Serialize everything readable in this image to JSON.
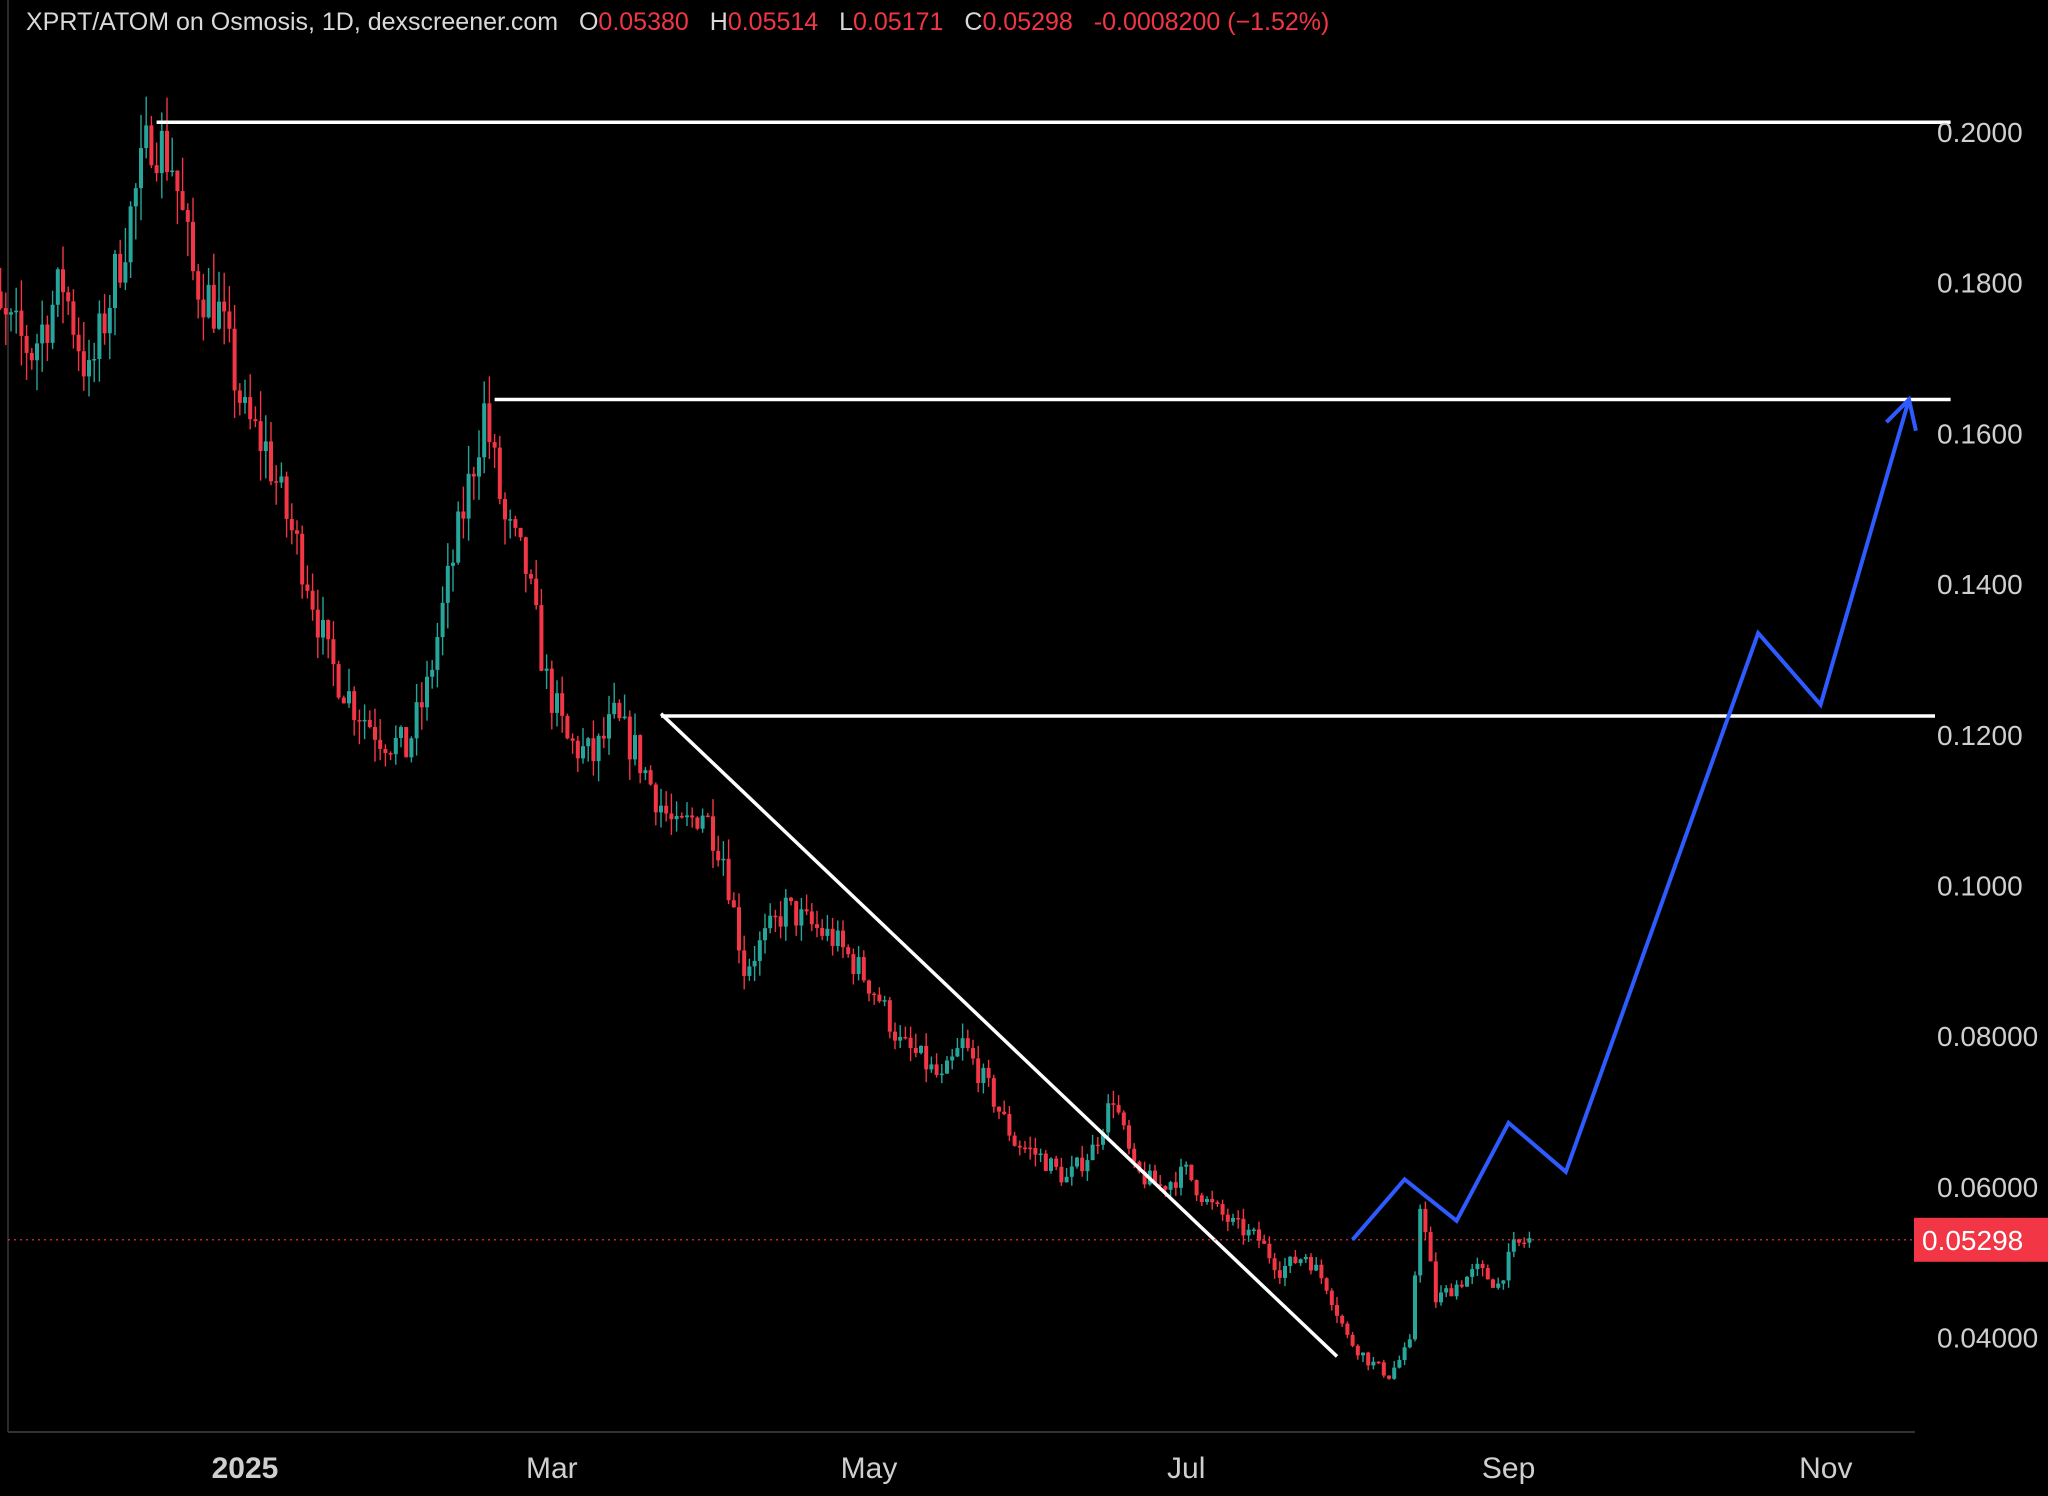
{
  "header": {
    "symbol": "XPRT/ATOM on Osmosis, 1D, dexscreener.com",
    "o_label": "O",
    "o_value": "0.05380",
    "h_label": "H",
    "h_value": "0.05514",
    "l_label": "L",
    "l_value": "0.05171",
    "c_label": "C",
    "c_value": "0.05298",
    "change": "-0.0008200 (−1.52%)"
  },
  "colors": {
    "background": "#000000",
    "up": "#26a69a",
    "down": "#f23645",
    "drawing": "#ffffff",
    "projection": "#2e5bff",
    "price_tag": "#f23645"
  },
  "chart_data": {
    "type": "candlestick",
    "title": "",
    "xlabel": "",
    "ylabel": "",
    "y_ticks": [
      "0.2000",
      "0.1800",
      "0.1600",
      "0.1400",
      "0.1200",
      "0.1000",
      "0.08000",
      "0.06000",
      "0.04000"
    ],
    "y_tick_values": [
      0.2,
      0.18,
      0.16,
      0.14,
      0.12,
      0.1,
      0.08,
      0.06,
      0.04
    ],
    "ylim": [
      0.03,
      0.21
    ],
    "x_ticks": [
      "2025",
      "Mar",
      "May",
      "Jul",
      "Sep",
      "Nov"
    ],
    "x_tick_dates": [
      "2025-01-01",
      "2025-03-01",
      "2025-05-01",
      "2025-07-01",
      "2025-09-01",
      "2025-11-01"
    ],
    "x_bold_ticks": [
      "2025"
    ],
    "xlim": [
      "2024-11-09",
      "2025-11-15"
    ],
    "current_price": "0.05298",
    "price_path": [
      [
        "2024-11-10",
        0.183
      ],
      [
        "2024-11-16",
        0.175
      ],
      [
        "2024-11-22",
        0.171
      ],
      [
        "2024-11-28",
        0.18
      ],
      [
        "2024-12-03",
        0.167
      ],
      [
        "2024-12-07",
        0.178
      ],
      [
        "2024-12-11",
        0.189
      ],
      [
        "2024-12-15",
        0.2
      ],
      [
        "2024-12-19",
        0.196
      ],
      [
        "2024-12-23",
        0.181
      ],
      [
        "2024-12-28",
        0.176
      ],
      [
        "2025-01-02",
        0.162
      ],
      [
        "2025-01-06",
        0.158
      ],
      [
        "2025-01-10",
        0.149
      ],
      [
        "2025-01-14",
        0.141
      ],
      [
        "2025-01-18",
        0.13
      ],
      [
        "2025-01-23",
        0.124
      ],
      [
        "2025-01-28",
        0.12
      ],
      [
        "2025-02-02",
        0.118
      ],
      [
        "2025-02-06",
        0.126
      ],
      [
        "2025-02-10",
        0.14
      ],
      [
        "2025-02-14",
        0.153
      ],
      [
        "2025-02-17",
        0.163
      ],
      [
        "2025-02-21",
        0.148
      ],
      [
        "2025-02-25",
        0.142
      ],
      [
        "2025-03-01",
        0.127
      ],
      [
        "2025-03-05",
        0.119
      ],
      [
        "2025-03-10",
        0.117
      ],
      [
        "2025-03-14",
        0.122
      ],
      [
        "2025-03-18",
        0.118
      ],
      [
        "2025-03-22",
        0.112
      ],
      [
        "2025-03-26",
        0.107
      ],
      [
        "2025-03-31",
        0.11
      ],
      [
        "2025-04-04",
        0.104
      ],
      [
        "2025-04-08",
        0.089
      ],
      [
        "2025-04-12",
        0.093
      ],
      [
        "2025-04-16",
        0.097
      ],
      [
        "2025-04-20",
        0.095
      ],
      [
        "2025-04-25",
        0.093
      ],
      [
        "2025-04-30",
        0.089
      ],
      [
        "2025-05-04",
        0.085
      ],
      [
        "2025-05-08",
        0.079
      ],
      [
        "2025-05-12",
        0.077
      ],
      [
        "2025-05-16",
        0.074
      ],
      [
        "2025-05-20",
        0.079
      ],
      [
        "2025-05-25",
        0.073
      ],
      [
        "2025-05-30",
        0.066
      ],
      [
        "2025-06-04",
        0.064
      ],
      [
        "2025-06-09",
        0.061
      ],
      [
        "2025-06-14",
        0.065
      ],
      [
        "2025-06-18",
        0.072
      ],
      [
        "2025-06-22",
        0.062
      ],
      [
        "2025-06-27",
        0.06
      ],
      [
        "2025-07-02",
        0.062
      ],
      [
        "2025-07-06",
        0.058
      ],
      [
        "2025-07-11",
        0.055
      ],
      [
        "2025-07-16",
        0.053
      ],
      [
        "2025-07-20",
        0.049
      ],
      [
        "2025-07-25",
        0.051
      ],
      [
        "2025-07-29",
        0.047
      ],
      [
        "2025-08-02",
        0.04
      ],
      [
        "2025-08-06",
        0.037
      ],
      [
        "2025-08-10",
        0.035
      ],
      [
        "2025-08-14",
        0.039
      ],
      [
        "2025-08-16",
        0.058
      ],
      [
        "2025-08-19",
        0.045
      ],
      [
        "2025-08-23",
        0.047
      ],
      [
        "2025-08-27",
        0.049
      ],
      [
        "2025-08-31",
        0.047
      ],
      [
        "2025-09-03",
        0.052
      ],
      [
        "2025-09-06",
        0.05298
      ]
    ],
    "horizontal_levels": [
      {
        "value": 0.2013,
        "from": "2024-12-15",
        "to": "2025-11-25"
      },
      {
        "value": 0.1645,
        "from": "2025-02-18",
        "to": "2025-11-25"
      },
      {
        "value": 0.1225,
        "from": "2025-03-22",
        "to": "2025-11-22"
      }
    ],
    "trendline": {
      "from": [
        "2025-03-22",
        0.1228
      ],
      "to": [
        "2025-07-30",
        0.0375
      ]
    },
    "projection_path": [
      [
        "2025-08-02",
        0.053
      ],
      [
        "2025-08-12",
        0.061
      ],
      [
        "2025-08-22",
        0.0555
      ],
      [
        "2025-09-01",
        0.0685
      ],
      [
        "2025-09-12",
        0.062
      ],
      [
        "2025-10-19",
        0.1335
      ],
      [
        "2025-10-31",
        0.124
      ],
      [
        "2025-11-17",
        0.1645
      ]
    ]
  }
}
